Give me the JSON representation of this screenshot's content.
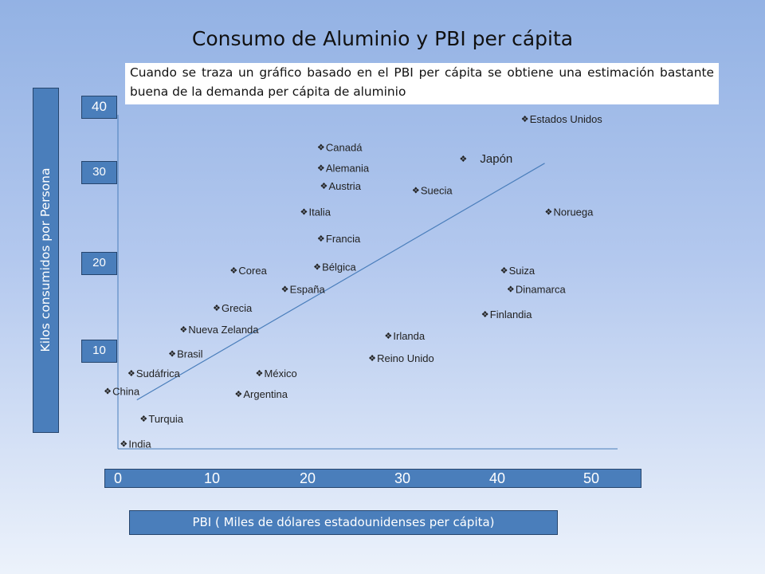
{
  "chart_data": {
    "type": "scatter",
    "title": "Consumo de Aluminio y PBI per cápita",
    "subtitle": "Cuando se traza un gráfico basado en el PBI per cápita se obtiene una estimación bastante buena de la demanda per cápita de aluminio",
    "xlabel": "PBI ( Miles de dólares estadounidenses per cápita)",
    "ylabel": "Kilos consumidos por Persona",
    "xticks": [
      "0",
      "10",
      "20",
      "30",
      "40",
      "50"
    ],
    "yticks": [
      "10",
      "20",
      "30",
      "40"
    ],
    "marker": "❖",
    "points": [
      {
        "name": "Estados Unidos",
        "x": 42.5,
        "y": 36
      },
      {
        "name": "Canadá",
        "x": 21,
        "y": 32.8
      },
      {
        "name": "Japón",
        "x": 36,
        "y": 31.5
      },
      {
        "name": "Alemania",
        "x": 21,
        "y": 30.5
      },
      {
        "name": "Austria",
        "x": 21.3,
        "y": 28.5
      },
      {
        "name": "Suecia",
        "x": 31,
        "y": 28
      },
      {
        "name": "Italia",
        "x": 19.2,
        "y": 25.6
      },
      {
        "name": "Noruega",
        "x": 45,
        "y": 25.6
      },
      {
        "name": "Francia",
        "x": 21,
        "y": 22.6
      },
      {
        "name": "Bélgica",
        "x": 20.6,
        "y": 19.4
      },
      {
        "name": "Corea",
        "x": 11.8,
        "y": 19
      },
      {
        "name": "Suiza",
        "x": 40.3,
        "y": 19
      },
      {
        "name": "España",
        "x": 17.2,
        "y": 16.9
      },
      {
        "name": "Dinamarca",
        "x": 41,
        "y": 16.9
      },
      {
        "name": "Grecia",
        "x": 10,
        "y": 14.8
      },
      {
        "name": "Finlandia",
        "x": 38.3,
        "y": 14.1
      },
      {
        "name": "Nueva Zelanda",
        "x": 6.5,
        "y": 12.4
      },
      {
        "name": "Irlanda",
        "x": 28.1,
        "y": 11.7
      },
      {
        "name": "Brasil",
        "x": 5.3,
        "y": 9.7
      },
      {
        "name": "Reino Unido",
        "x": 26.4,
        "y": 9.2
      },
      {
        "name": "Sudáfrica",
        "x": 1,
        "y": 7.5
      },
      {
        "name": "México",
        "x": 14.5,
        "y": 7.5
      },
      {
        "name": "China",
        "x": -1.5,
        "y": 5.5
      },
      {
        "name": "Argentina",
        "x": 12.3,
        "y": 5.2
      },
      {
        "name": "Turquia",
        "x": 2.3,
        "y": 2.4
      },
      {
        "name": "India",
        "x": 0.2,
        "y": -0.4
      }
    ],
    "trendline": {
      "x0": 2,
      "y0": 4.5,
      "x1": 45,
      "y1": 31
    }
  }
}
